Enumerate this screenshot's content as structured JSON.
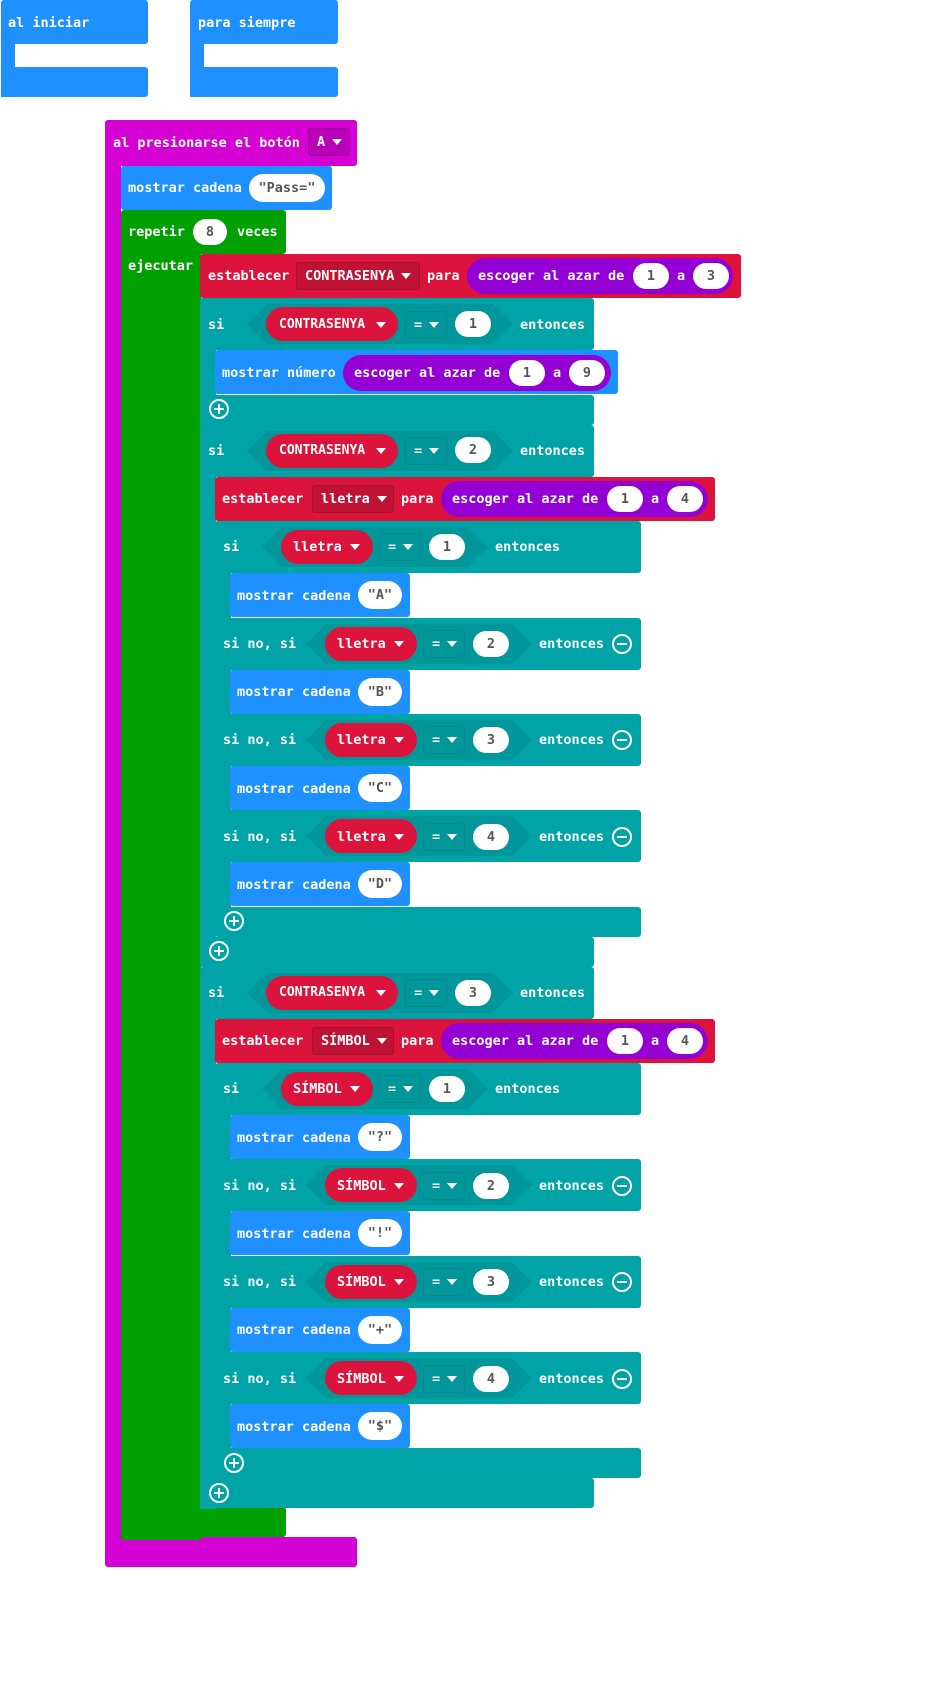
{
  "colors": {
    "basic": "#1e90ff",
    "loop": "#00a000",
    "input": "#d400d4",
    "logic": "#00a4a6",
    "variable": "#dc143c",
    "math": "#9400d3"
  },
  "start": {
    "label": "al iniciar"
  },
  "forever": {
    "label": "para siempre"
  },
  "event": {
    "label": "al presionarse el botón",
    "button": "A"
  },
  "show_pass": {
    "label": "mostrar cadena",
    "value": "\"Pass=\""
  },
  "repeat": {
    "label": "repetir",
    "count": "8",
    "unit": "veces",
    "do": "ejecutar"
  },
  "set1": {
    "label": "establecer",
    "var": "CONTRASENYA",
    "for": "para",
    "rand": "escoger al azar de",
    "from": "1",
    "to_label": "a",
    "to": "3"
  },
  "if1": {
    "si": "si",
    "var": "CONTRASENYA",
    "op": "=",
    "val": "1",
    "then": "entonces"
  },
  "shownum": {
    "label": "mostrar número",
    "rand": "escoger al azar de",
    "from": "1",
    "to_label": "a",
    "to": "9"
  },
  "if2": {
    "si": "si",
    "var": "CONTRASENYA",
    "op": "=",
    "val": "2",
    "then": "entonces"
  },
  "set2": {
    "label": "establecer",
    "var": "lletra",
    "for": "para",
    "rand": "escoger al azar de",
    "from": "1",
    "to_label": "a",
    "to": "4"
  },
  "lletra_if": {
    "first": "si",
    "elseif": "si no, si",
    "var": "lletra",
    "op": "=",
    "then": "entonces",
    "show": "mostrar cadena",
    "branches": [
      {
        "val": "1",
        "out": "\"A\""
      },
      {
        "val": "2",
        "out": "\"B\""
      },
      {
        "val": "3",
        "out": "\"C\""
      },
      {
        "val": "4",
        "out": "\"D\""
      }
    ]
  },
  "if3": {
    "si": "si",
    "var": "CONTRASENYA",
    "op": "=",
    "val": "3",
    "then": "entonces"
  },
  "set3": {
    "label": "establecer",
    "var": "SÍMBOL",
    "for": "para",
    "rand": "escoger al azar de",
    "from": "1",
    "to_label": "a",
    "to": "4"
  },
  "simbol_if": {
    "first": "si",
    "elseif": "si no, si",
    "var": "SÍMBOL",
    "op": "=",
    "then": "entonces",
    "show": "mostrar cadena",
    "branches": [
      {
        "val": "1",
        "out": "\"?\""
      },
      {
        "val": "2",
        "out": "\"!\""
      },
      {
        "val": "3",
        "out": "\"+\""
      },
      {
        "val": "4",
        "out": "\"$\""
      }
    ]
  }
}
